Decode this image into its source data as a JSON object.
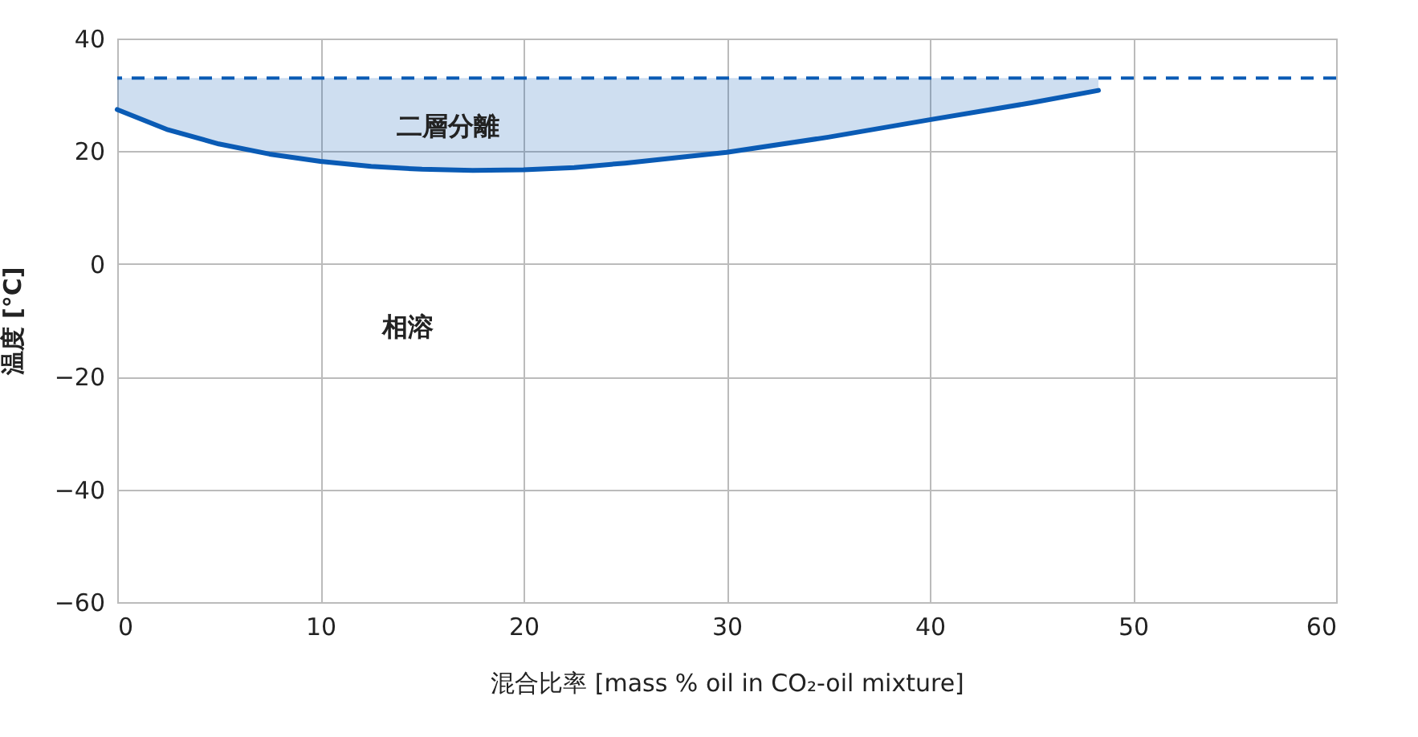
{
  "chart_data": {
    "type": "line",
    "xlabel": "混合比率 [mass % oil in CO₂-oil mixture]",
    "ylabel": "温度 [°C]",
    "xlim": [
      0,
      60
    ],
    "xticks": [
      0,
      10,
      20,
      30,
      40,
      50,
      60
    ],
    "ylim": [
      -60,
      40
    ],
    "yticks": [
      -60,
      -40,
      -20,
      0,
      20,
      40
    ],
    "grid": true,
    "marker": "none",
    "line_style": "solid",
    "series": [
      {
        "color": "#0a5bb5",
        "x": [
          0,
          2.5,
          5,
          7.5,
          10,
          12.5,
          15,
          17.5,
          20,
          22.5,
          25,
          30,
          35,
          40,
          45,
          48.3
        ],
        "values": [
          27.4,
          23.8,
          21.3,
          19.5,
          18.2,
          17.3,
          16.8,
          16.6,
          16.7,
          17.1,
          17.9,
          19.8,
          22.5,
          25.6,
          28.6,
          30.8
        ],
        "lower": [
          27.4,
          23.8,
          21.3,
          19.5,
          18.2,
          17.3,
          16.8,
          16.6,
          16.7,
          17.1,
          17.9,
          19.8,
          22.5,
          25.6,
          28.6,
          30.8
        ],
        "upper": [
          33,
          33,
          33,
          33,
          33,
          33,
          33,
          33,
          33,
          33,
          33,
          33,
          33,
          33,
          33,
          33
        ]
      }
    ],
    "ref_lines": [
      {
        "axis": "y",
        "value": 33,
        "color": "#0a5bb5",
        "line_style": "dashed"
      }
    ],
    "annotations": [
      "二層分離",
      "相溶"
    ]
  }
}
